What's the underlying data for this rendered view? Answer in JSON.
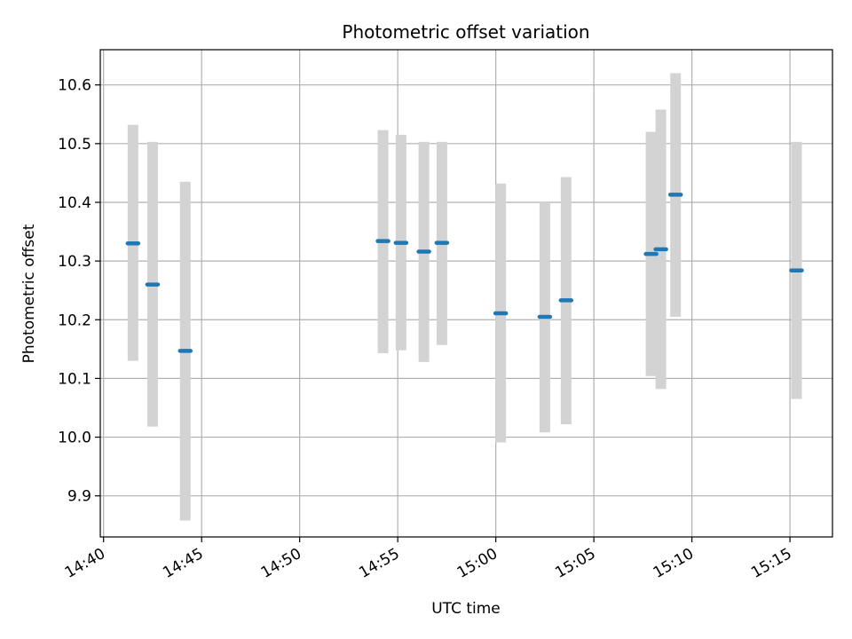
{
  "chart_data": {
    "type": "scatter",
    "title": "Photometric offset variation",
    "xlabel": "UTC time",
    "ylabel": "Photometric offset",
    "xlim": [
      "14:39:50",
      "15:17:10"
    ],
    "ylim": [
      9.83,
      10.66
    ],
    "x_ticks": [
      "14:40",
      "14:45",
      "14:50",
      "14:55",
      "15:00",
      "15:05",
      "15:10",
      "15:15"
    ],
    "y_ticks": [
      "9.9",
      "10.0",
      "10.1",
      "10.2",
      "10.3",
      "10.4",
      "10.5",
      "10.6"
    ],
    "grid": true,
    "colors": {
      "point": "#1f77b4",
      "error_bar": "#d3d3d3",
      "grid": "#b0b0b0"
    },
    "points": [
      {
        "x": "14:41:30",
        "y": 10.33,
        "y_low": 10.13,
        "y_high": 10.532
      },
      {
        "x": "14:42:30",
        "y": 10.26,
        "y_low": 10.018,
        "y_high": 10.503
      },
      {
        "x": "14:44:10",
        "y": 10.147,
        "y_low": 9.858,
        "y_high": 10.435
      },
      {
        "x": "14:54:15",
        "y": 10.334,
        "y_low": 10.143,
        "y_high": 10.523
      },
      {
        "x": "14:55:10",
        "y": 10.331,
        "y_low": 10.148,
        "y_high": 10.515
      },
      {
        "x": "14:56:20",
        "y": 10.316,
        "y_low": 10.128,
        "y_high": 10.503
      },
      {
        "x": "14:57:15",
        "y": 10.331,
        "y_low": 10.157,
        "y_high": 10.503
      },
      {
        "x": "15:00:15",
        "y": 10.211,
        "y_low": 9.991,
        "y_high": 10.432
      },
      {
        "x": "15:02:30",
        "y": 10.205,
        "y_low": 10.008,
        "y_high": 10.4
      },
      {
        "x": "15:03:35",
        "y": 10.233,
        "y_low": 10.022,
        "y_high": 10.443
      },
      {
        "x": "15:07:55",
        "y": 10.312,
        "y_low": 10.104,
        "y_high": 10.52
      },
      {
        "x": "15:08:25",
        "y": 10.32,
        "y_low": 10.082,
        "y_high": 10.558
      },
      {
        "x": "15:09:10",
        "y": 10.413,
        "y_low": 10.205,
        "y_high": 10.62
      },
      {
        "x": "15:15:20",
        "y": 10.284,
        "y_low": 10.065,
        "y_high": 10.503
      }
    ]
  }
}
